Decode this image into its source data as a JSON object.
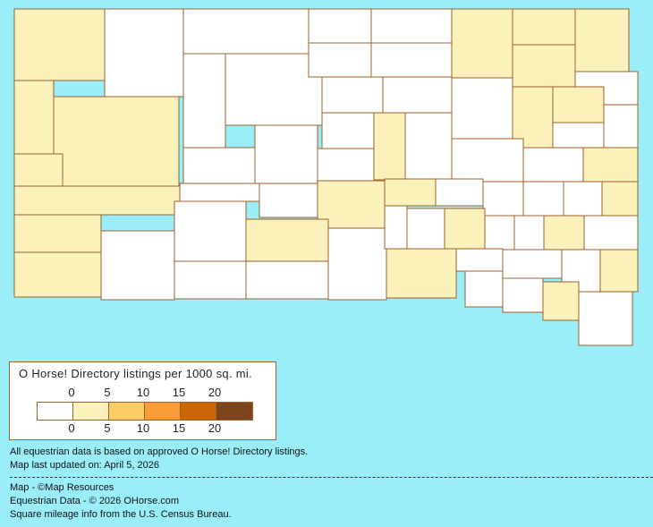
{
  "colors": {
    "background": "#99eefa",
    "border": "#a0602a"
  },
  "legend": {
    "title": "O Horse! Directory listings per 1000 sq. mi.",
    "ticks": [
      "0",
      "5",
      "10",
      "15",
      "20"
    ],
    "bins": [
      {
        "range": "0",
        "color": "#ffffff"
      },
      {
        "range": "0-5",
        "color": "#fbf1bb"
      },
      {
        "range": "5-10",
        "color": "#fccc66"
      },
      {
        "range": "10-15",
        "color": "#fb9c36"
      },
      {
        "range": "15-20",
        "color": "#cc6604"
      },
      {
        "range": "20+",
        "color": "#7d451b"
      }
    ]
  },
  "county_levels": [
    1,
    0,
    0,
    0,
    0,
    1,
    1,
    1,
    1,
    1,
    1,
    1,
    1,
    1,
    0,
    0,
    0,
    0,
    0,
    0,
    0,
    1,
    0,
    1,
    1,
    0,
    0,
    0,
    0,
    1,
    0,
    0,
    0,
    1,
    0,
    0,
    0,
    0,
    1,
    1,
    0,
    0,
    0,
    0,
    1,
    0,
    0,
    0,
    1,
    0,
    0,
    1,
    0,
    0,
    1,
    0,
    0,
    1,
    0,
    0,
    0,
    0,
    1,
    0
  ],
  "notes": {
    "line1": "All equestrian data is based on approved O Horse! Directory listings.",
    "line2": "Map last updated on: April 5, 2026",
    "credit1": "Map - ©Map Resources",
    "credit2": "Equestrian Data - © 2026 OHorse.com",
    "credit3": "Square mileage info from the U.S. Census Bureau."
  }
}
